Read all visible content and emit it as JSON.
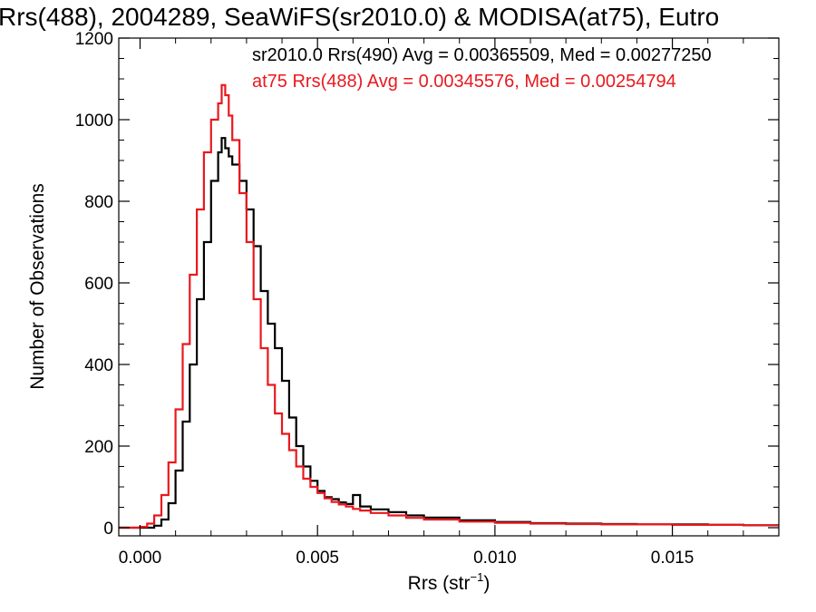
{
  "chart_data": {
    "type": "line",
    "title": "Rrs(488), 2004289, SeaWiFS(sr2010.0) & MODISA(at75), Eutro",
    "xlabel": "Rrs (str",
    "xlabel_sup": "−1",
    "xlabel_close": ")",
    "ylabel": "Number of Observations",
    "xlim": [
      -0.0006,
      0.018
    ],
    "ylim": [
      -20,
      1200
    ],
    "xticks": [
      {
        "value": 0.0,
        "label": "0.000"
      },
      {
        "value": 0.005,
        "label": "0.005"
      },
      {
        "value": 0.01,
        "label": "0.010"
      },
      {
        "value": 0.015,
        "label": "0.015"
      }
    ],
    "yticks": [
      {
        "value": 0,
        "label": "0"
      },
      {
        "value": 200,
        "label": "200"
      },
      {
        "value": 400,
        "label": "400"
      },
      {
        "value": 600,
        "label": "600"
      },
      {
        "value": 800,
        "label": "800"
      },
      {
        "value": 1000,
        "label": "1000"
      },
      {
        "value": 1200,
        "label": "1200"
      }
    ],
    "grid": false,
    "legend_position": "top-right",
    "annotations": [
      {
        "text": "sr2010.0 Rrs(490) Avg = 0.00365509, Med = 0.00277250",
        "color": "#000000"
      },
      {
        "text": "at75 Rrs(488) Avg = 0.00345576, Med = 0.00254794",
        "color": "#e8191e"
      }
    ],
    "series": [
      {
        "color": "#000000",
        "x": [
          -0.0006,
          0.0,
          0.0004,
          0.0006,
          0.0008,
          0.001,
          0.0012,
          0.0014,
          0.0016,
          0.0018,
          0.002,
          0.0022,
          0.0023,
          0.0024,
          0.0025,
          0.0026,
          0.0028,
          0.003,
          0.0032,
          0.0034,
          0.0036,
          0.0038,
          0.004,
          0.0042,
          0.0044,
          0.0046,
          0.0048,
          0.005,
          0.0052,
          0.0054,
          0.0056,
          0.0058,
          0.006,
          0.0062,
          0.0065,
          0.007,
          0.0075,
          0.008,
          0.009,
          0.01,
          0.011,
          0.012,
          0.013,
          0.014,
          0.015,
          0.016,
          0.017,
          0.018
        ],
        "y": [
          0,
          0,
          5,
          20,
          60,
          140,
          260,
          400,
          560,
          700,
          850,
          920,
          955,
          930,
          910,
          890,
          850,
          780,
          690,
          580,
          500,
          440,
          360,
          270,
          200,
          150,
          115,
          90,
          75,
          70,
          62,
          58,
          80,
          52,
          45,
          38,
          30,
          25,
          18,
          14,
          11,
          10,
          9,
          8,
          8,
          7,
          6,
          6
        ]
      },
      {
        "color": "#e8191e",
        "x": [
          -0.0006,
          0.0,
          0.0002,
          0.0004,
          0.0006,
          0.0008,
          0.001,
          0.0012,
          0.0014,
          0.0016,
          0.0018,
          0.002,
          0.0022,
          0.0023,
          0.0024,
          0.0025,
          0.0026,
          0.0028,
          0.003,
          0.0032,
          0.0034,
          0.0036,
          0.0038,
          0.004,
          0.0042,
          0.0044,
          0.0046,
          0.0048,
          0.005,
          0.0052,
          0.0054,
          0.0056,
          0.0058,
          0.006,
          0.0062,
          0.0065,
          0.007,
          0.0075,
          0.008,
          0.009,
          0.01,
          0.011,
          0.012,
          0.013,
          0.014,
          0.015,
          0.016,
          0.017,
          0.018
        ],
        "y": [
          0,
          2,
          10,
          30,
          80,
          160,
          290,
          450,
          620,
          780,
          920,
          1000,
          1040,
          1085,
          1060,
          1010,
          950,
          820,
          700,
          560,
          440,
          350,
          280,
          230,
          190,
          150,
          120,
          100,
          85,
          72,
          63,
          57,
          52,
          46,
          42,
          36,
          30,
          24,
          20,
          15,
          12,
          10,
          9,
          8,
          8,
          7,
          7,
          6,
          6
        ]
      }
    ]
  }
}
